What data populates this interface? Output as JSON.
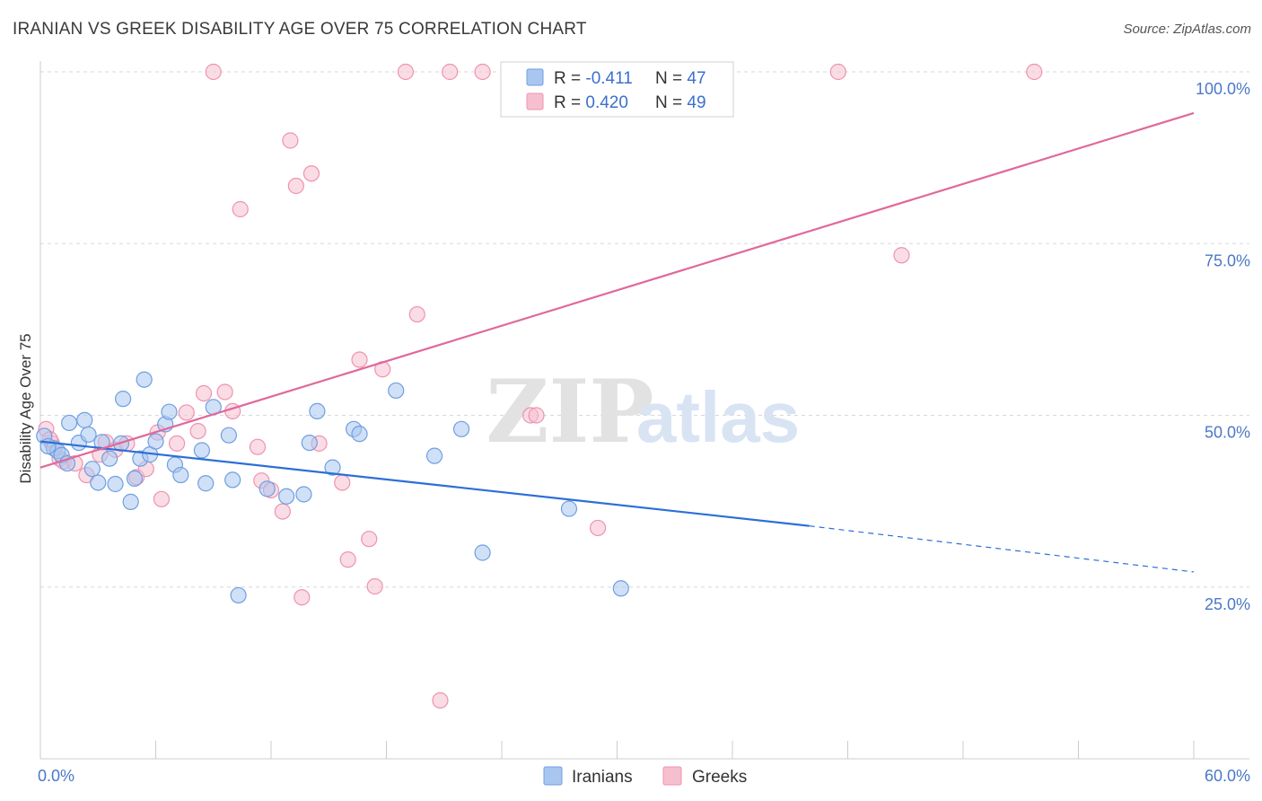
{
  "title": "IRANIAN VS GREEK DISABILITY AGE OVER 75 CORRELATION CHART",
  "source": "Source: ZipAtlas.com",
  "watermark": {
    "zip": "ZIP",
    "atlas": "atlas"
  },
  "colors": {
    "iranians_fill": "#a9c6f0",
    "iranians_stroke": "#6f9fe0",
    "iranians_line": "#2c6fd6",
    "greeks_fill": "#f6bfd0",
    "greeks_stroke": "#ee93b0",
    "greeks_line": "#e0689a",
    "tick_text": "#4a78c8",
    "grid": "#d9d9d9"
  },
  "legend": {
    "rows": [
      {
        "r_label": "R = ",
        "r_value": "-0.411",
        "n_label": "N = ",
        "n_value": "47",
        "series": "iranians"
      },
      {
        "r_label": "R = ",
        "r_value": "0.420",
        "n_label": "N = ",
        "n_value": "49",
        "series": "greeks"
      }
    ]
  },
  "bottom_legend": [
    "Iranians",
    "Greeks"
  ],
  "chart_data": {
    "type": "scatter",
    "title": "IRANIAN VS GREEK DISABILITY AGE OVER 75 CORRELATION CHART",
    "xlabel": "",
    "ylabel": "Disability Age Over 75",
    "xlim": [
      0,
      60
    ],
    "ylim": [
      0,
      100
    ],
    "x_tick_labels": [
      "0.0%",
      "60.0%"
    ],
    "y_ticks": [
      25,
      50,
      75,
      100
    ],
    "y_tick_labels": [
      "25.0%",
      "50.0%",
      "75.0%",
      "100.0%"
    ],
    "grid": true,
    "legend_position": "top-center",
    "series": [
      {
        "name": "Iranians",
        "points": [
          [
            0.2,
            47.0
          ],
          [
            0.7,
            45.2
          ],
          [
            0.9,
            44.8
          ],
          [
            1.1,
            44.2
          ],
          [
            1.4,
            43.0
          ],
          [
            1.5,
            48.9
          ],
          [
            2.0,
            46.0
          ],
          [
            2.3,
            49.3
          ],
          [
            2.5,
            47.2
          ],
          [
            2.7,
            42.2
          ],
          [
            3.0,
            40.2
          ],
          [
            3.2,
            46.1
          ],
          [
            3.6,
            43.7
          ],
          [
            3.9,
            40.0
          ],
          [
            4.2,
            45.9
          ],
          [
            4.3,
            52.4
          ],
          [
            4.7,
            37.4
          ],
          [
            4.9,
            40.8
          ],
          [
            5.2,
            43.7
          ],
          [
            5.4,
            55.2
          ],
          [
            5.7,
            44.3
          ],
          [
            6.0,
            46.2
          ],
          [
            6.5,
            48.7
          ],
          [
            6.7,
            50.5
          ],
          [
            7.0,
            42.8
          ],
          [
            7.3,
            41.3
          ],
          [
            8.4,
            44.9
          ],
          [
            8.6,
            40.1
          ],
          [
            9.0,
            51.2
          ],
          [
            9.8,
            47.1
          ],
          [
            10.0,
            40.6
          ],
          [
            10.3,
            23.8
          ],
          [
            11.8,
            39.3
          ],
          [
            12.8,
            38.2
          ],
          [
            13.7,
            38.5
          ],
          [
            14.0,
            46.0
          ],
          [
            14.4,
            50.6
          ],
          [
            15.2,
            42.4
          ],
          [
            16.3,
            48.0
          ],
          [
            16.6,
            47.3
          ],
          [
            18.5,
            53.6
          ],
          [
            20.5,
            44.1
          ],
          [
            21.9,
            48.0
          ],
          [
            23.0,
            30.0
          ],
          [
            27.5,
            36.4
          ],
          [
            30.2,
            24.8
          ],
          [
            0.4,
            45.5
          ]
        ]
      },
      {
        "name": "Greeks",
        "points": [
          [
            0.3,
            48.0
          ],
          [
            0.6,
            45.9
          ],
          [
            1.0,
            43.7
          ],
          [
            1.2,
            43.3
          ],
          [
            1.8,
            43.0
          ],
          [
            2.4,
            41.3
          ],
          [
            3.1,
            44.3
          ],
          [
            3.4,
            46.1
          ],
          [
            3.9,
            45.0
          ],
          [
            4.5,
            45.9
          ],
          [
            5.0,
            41.0
          ],
          [
            5.5,
            42.2
          ],
          [
            6.1,
            47.5
          ],
          [
            6.3,
            37.8
          ],
          [
            7.1,
            45.9
          ],
          [
            7.6,
            50.4
          ],
          [
            8.2,
            47.7
          ],
          [
            8.5,
            53.2
          ],
          [
            9.0,
            100.0
          ],
          [
            9.6,
            53.4
          ],
          [
            10.0,
            50.6
          ],
          [
            10.4,
            80.0
          ],
          [
            11.3,
            45.4
          ],
          [
            11.5,
            40.5
          ],
          [
            12.0,
            39.1
          ],
          [
            12.6,
            36.0
          ],
          [
            13.0,
            90.0
          ],
          [
            13.3,
            83.4
          ],
          [
            13.6,
            23.5
          ],
          [
            14.1,
            85.2
          ],
          [
            14.5,
            45.9
          ],
          [
            15.7,
            40.2
          ],
          [
            16.0,
            29.0
          ],
          [
            16.6,
            58.1
          ],
          [
            17.1,
            32.0
          ],
          [
            17.4,
            25.1
          ],
          [
            17.8,
            56.7
          ],
          [
            19.0,
            100.0
          ],
          [
            19.6,
            64.7
          ],
          [
            20.8,
            8.5
          ],
          [
            21.3,
            100.0
          ],
          [
            23.0,
            100.0
          ],
          [
            25.5,
            50.0
          ],
          [
            25.8,
            50.0
          ],
          [
            29.0,
            33.6
          ],
          [
            41.5,
            100.0
          ],
          [
            44.8,
            73.3
          ],
          [
            51.7,
            100.0
          ],
          [
            0.5,
            46.5
          ]
        ]
      }
    ],
    "trendlines": [
      {
        "series": "Iranians",
        "x": [
          0,
          40,
          60
        ],
        "y": [
          46.2,
          33.9,
          27.2
        ],
        "solid_until_x": 40
      },
      {
        "series": "Greeks",
        "x": [
          0,
          60
        ],
        "y": [
          42.4,
          94.0
        ]
      }
    ]
  }
}
